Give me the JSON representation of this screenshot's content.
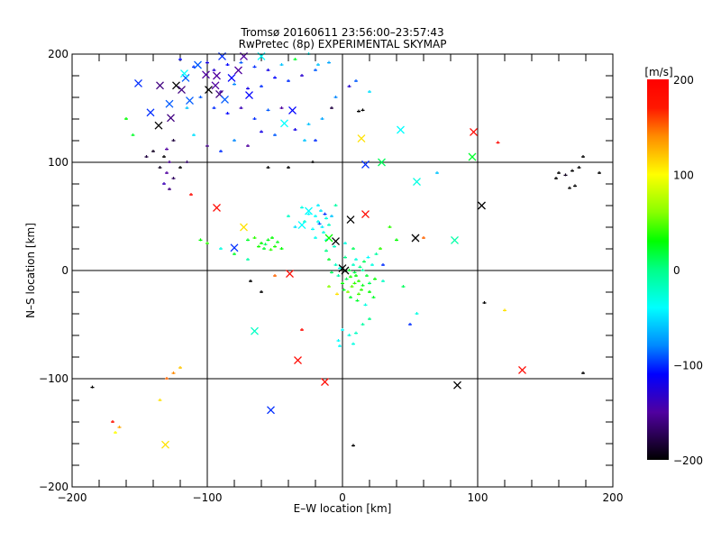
{
  "chart_data": {
    "type": "scatter",
    "title": "Tromsø 20160611 23:56:00–23:57:43",
    "subtitle": "RwPretec (8p) EXPERIMENTAL SKYMAP",
    "xlabel": "E–W location [km]",
    "ylabel": "N–S location [km]",
    "xlim": [
      -200,
      200
    ],
    "ylim": [
      -200,
      200
    ],
    "xticks": [
      "−200",
      "−100",
      "0",
      "100",
      "200"
    ],
    "yticks": [
      "−200",
      "−100",
      "0",
      "100",
      "200"
    ],
    "grid": true,
    "colorbar": {
      "label": "[m/s]",
      "range": [
        -200,
        200
      ],
      "ticks": [
        "200",
        "100",
        "0",
        "−100",
        "−200"
      ],
      "stops": [
        [
          200,
          "#ff0000"
        ],
        [
          170,
          "#ff1800"
        ],
        [
          140,
          "#ff8c00"
        ],
        [
          100,
          "#ffff00"
        ],
        [
          60,
          "#88ff00"
        ],
        [
          30,
          "#00ff00"
        ],
        [
          0,
          "#00ff88"
        ],
        [
          -40,
          "#00ffff"
        ],
        [
          -80,
          "#0088ff"
        ],
        [
          -110,
          "#0000ff"
        ],
        [
          -150,
          "#5000a0"
        ],
        [
          -200,
          "#000000"
        ]
      ]
    },
    "series_note": "points: [E-W km, N-S km, velocity m/s]",
    "crosses": [
      [
        97,
        128,
        190
      ],
      [
        43,
        130,
        -40
      ],
      [
        14,
        122,
        110
      ],
      [
        96,
        105,
        20
      ],
      [
        55,
        82,
        -30
      ],
      [
        17,
        98,
        -100
      ],
      [
        29,
        100,
        10
      ],
      [
        103,
        60,
        -200
      ],
      [
        -93,
        58,
        190
      ],
      [
        -73,
        40,
        110
      ],
      [
        6,
        47,
        -200
      ],
      [
        17,
        52,
        190
      ],
      [
        54,
        30,
        -200
      ],
      [
        83,
        28,
        -10
      ],
      [
        -80,
        21,
        -100
      ],
      [
        -5,
        27,
        -200
      ],
      [
        -39,
        -3,
        190
      ],
      [
        -33,
        -83,
        190
      ],
      [
        -13,
        -103,
        190
      ],
      [
        133,
        -92,
        190
      ],
      [
        85,
        -106,
        -200
      ],
      [
        -53,
        -129,
        -100
      ],
      [
        -131,
        -161,
        110
      ],
      [
        -65,
        -56,
        -20
      ],
      [
        0,
        2,
        -200
      ],
      [
        2,
        0,
        -200
      ],
      [
        -151,
        173,
        -100
      ],
      [
        -142,
        146,
        -100
      ],
      [
        -136,
        134,
        -200
      ],
      [
        -127,
        141,
        -160
      ],
      [
        -123,
        171,
        -200
      ],
      [
        -119,
        167,
        -160
      ],
      [
        -135,
        171,
        -160
      ],
      [
        -116,
        178,
        -90
      ],
      [
        -107,
        190,
        -90
      ],
      [
        -101,
        181,
        -150
      ],
      [
        -93,
        180,
        -150
      ],
      [
        -94,
        171,
        -150
      ],
      [
        -99,
        167,
        -200
      ],
      [
        -91,
        163,
        -160
      ],
      [
        -113,
        157,
        -90
      ],
      [
        -128,
        154,
        -90
      ],
      [
        -77,
        185,
        -150
      ],
      [
        -82,
        178,
        -110
      ],
      [
        -69,
        162,
        -110
      ],
      [
        -89,
        198,
        -100
      ],
      [
        -73,
        198,
        -150
      ],
      [
        -60,
        198,
        -40
      ],
      [
        -117,
        182,
        -40
      ],
      [
        -87,
        158,
        -90
      ],
      [
        -37,
        148,
        -110
      ],
      [
        -43,
        136,
        -40
      ],
      [
        -30,
        42,
        -40
      ],
      [
        -25,
        55,
        -40
      ],
      [
        -10,
        30,
        30
      ]
    ],
    "dots": [
      [
        -120,
        195,
        -110
      ],
      [
        -110,
        188,
        -100
      ],
      [
        -100,
        192,
        -120
      ],
      [
        -95,
        185,
        -130
      ],
      [
        -85,
        190,
        -110
      ],
      [
        -75,
        192,
        -90
      ],
      [
        -65,
        188,
        -100
      ],
      [
        -55,
        185,
        -120
      ],
      [
        -50,
        178,
        -110
      ],
      [
        -45,
        190,
        -60
      ],
      [
        -40,
        175,
        -100
      ],
      [
        -30,
        180,
        -130
      ],
      [
        -20,
        185,
        -90
      ],
      [
        -18,
        190,
        -60
      ],
      [
        -10,
        192,
        -70
      ],
      [
        -35,
        195,
        20
      ],
      [
        -25,
        200,
        -40
      ],
      [
        -60,
        170,
        -100
      ],
      [
        -70,
        168,
        -120
      ],
      [
        -80,
        172,
        -80
      ],
      [
        -90,
        165,
        -140
      ],
      [
        -105,
        160,
        -90
      ],
      [
        -115,
        150,
        -60
      ],
      [
        -95,
        150,
        -100
      ],
      [
        -85,
        145,
        -110
      ],
      [
        -75,
        150,
        -140
      ],
      [
        -65,
        140,
        -100
      ],
      [
        -55,
        148,
        -90
      ],
      [
        -45,
        150,
        -150
      ],
      [
        -35,
        130,
        -120
      ],
      [
        -25,
        135,
        -60
      ],
      [
        -15,
        140,
        -70
      ],
      [
        -20,
        120,
        -100
      ],
      [
        -50,
        125,
        -90
      ],
      [
        -60,
        128,
        -120
      ],
      [
        -70,
        115,
        -150
      ],
      [
        -80,
        120,
        -80
      ],
      [
        -90,
        110,
        -100
      ],
      [
        -100,
        115,
        -160
      ],
      [
        -110,
        125,
        -50
      ],
      [
        -125,
        120,
        -180
      ],
      [
        -130,
        112,
        -150
      ],
      [
        -132,
        105,
        -200
      ],
      [
        -128,
        100,
        -160
      ],
      [
        -135,
        95,
        -190
      ],
      [
        -130,
        90,
        -150
      ],
      [
        -125,
        85,
        -170
      ],
      [
        -132,
        80,
        -140
      ],
      [
        -128,
        75,
        -160
      ],
      [
        -120,
        95,
        -200
      ],
      [
        -115,
        100,
        -170
      ],
      [
        -140,
        110,
        -190
      ],
      [
        -145,
        105,
        -180
      ],
      [
        -155,
        125,
        20
      ],
      [
        -5,
        160,
        -80
      ],
      [
        5,
        170,
        -130
      ],
      [
        10,
        175,
        -90
      ],
      [
        -8,
        150,
        -180
      ],
      [
        15,
        148,
        -200
      ],
      [
        20,
        165,
        -50
      ],
      [
        160,
        90,
        -200
      ],
      [
        165,
        88,
        -190
      ],
      [
        170,
        92,
        -200
      ],
      [
        158,
        85,
        -200
      ],
      [
        175,
        95,
        -200
      ],
      [
        178,
        105,
        -200
      ],
      [
        190,
        90,
        -200
      ],
      [
        172,
        78,
        -200
      ],
      [
        168,
        76,
        -200
      ],
      [
        -20,
        50,
        -40
      ],
      [
        -18,
        45,
        -35
      ],
      [
        -15,
        40,
        -45
      ],
      [
        -12,
        48,
        -30
      ],
      [
        -22,
        38,
        -40
      ],
      [
        -16,
        55,
        -50
      ],
      [
        -10,
        42,
        -20
      ],
      [
        -25,
        52,
        -40
      ],
      [
        -14,
        35,
        -30
      ],
      [
        -18,
        60,
        -45
      ],
      [
        -8,
        50,
        -60
      ],
      [
        -20,
        30,
        -35
      ],
      [
        -28,
        45,
        -20
      ],
      [
        -12,
        28,
        -40
      ],
      [
        -5,
        60,
        -10
      ],
      [
        -30,
        58,
        -30
      ],
      [
        -35,
        40,
        -50
      ],
      [
        -40,
        50,
        -20
      ],
      [
        -17,
        43,
        -90
      ],
      [
        -13,
        52,
        -100
      ],
      [
        -60,
        25,
        30
      ],
      [
        -55,
        28,
        25
      ],
      [
        -50,
        22,
        35
      ],
      [
        -58,
        20,
        20
      ],
      [
        -65,
        30,
        40
      ],
      [
        -52,
        30,
        30
      ],
      [
        -48,
        26,
        25
      ],
      [
        -62,
        22,
        35
      ],
      [
        -70,
        28,
        20
      ],
      [
        -45,
        20,
        30
      ],
      [
        -57,
        24,
        10
      ],
      [
        -53,
        19,
        40
      ],
      [
        5,
        0,
        20
      ],
      [
        10,
        -5,
        30
      ],
      [
        8,
        5,
        -20
      ],
      [
        12,
        -10,
        40
      ],
      [
        3,
        -8,
        10
      ],
      [
        15,
        0,
        -10
      ],
      [
        7,
        -15,
        50
      ],
      [
        18,
        -5,
        20
      ],
      [
        10,
        10,
        -30
      ],
      [
        2,
        12,
        0
      ],
      [
        20,
        -20,
        30
      ],
      [
        6,
        -25,
        20
      ],
      [
        14,
        -18,
        40
      ],
      [
        -5,
        5,
        -20
      ],
      [
        -8,
        -2,
        10
      ],
      [
        0,
        -12,
        30
      ],
      [
        22,
        5,
        -30
      ],
      [
        16,
        8,
        10
      ],
      [
        11,
        -28,
        20
      ],
      [
        4,
        -20,
        60
      ],
      [
        9,
        -12,
        40
      ],
      [
        13,
        3,
        0
      ],
      [
        -3,
        -5,
        -10
      ],
      [
        19,
        12,
        -40
      ],
      [
        24,
        -8,
        30
      ],
      [
        -10,
        10,
        20
      ],
      [
        -12,
        18,
        0
      ],
      [
        -6,
        22,
        -20
      ],
      [
        2,
        25,
        -30
      ],
      [
        8,
        20,
        10
      ],
      [
        25,
        15,
        -10
      ],
      [
        28,
        20,
        40
      ],
      [
        17,
        -32,
        -30
      ],
      [
        6,
        -6,
        35
      ],
      [
        12,
        -22,
        45
      ],
      [
        9,
        -2,
        15
      ],
      [
        15,
        -14,
        25
      ],
      [
        1,
        -18,
        20
      ],
      [
        -2,
        2,
        -30
      ],
      [
        20,
        -12,
        10
      ],
      [
        -4,
        -22,
        110
      ],
      [
        30,
        5,
        -100
      ],
      [
        -10,
        -15,
        60
      ],
      [
        23,
        -25,
        20
      ],
      [
        0,
        -55,
        -40
      ],
      [
        5,
        -60,
        -30
      ],
      [
        -3,
        -65,
        -40
      ],
      [
        10,
        -58,
        -20
      ],
      [
        15,
        -50,
        -10
      ],
      [
        20,
        -45,
        0
      ],
      [
        -2,
        -70,
        -40
      ],
      [
        8,
        -68,
        -30
      ],
      [
        -70,
        10,
        -10
      ],
      [
        -80,
        15,
        20
      ],
      [
        -90,
        20,
        -30
      ],
      [
        -100,
        25,
        40
      ],
      [
        -105,
        28,
        30
      ],
      [
        -60,
        -20,
        -200
      ],
      [
        -30,
        -55,
        190
      ],
      [
        -120,
        -90,
        120
      ],
      [
        -125,
        -95,
        140
      ],
      [
        -135,
        -120,
        110
      ],
      [
        -165,
        -145,
        130
      ],
      [
        -168,
        -150,
        100
      ],
      [
        -170,
        -140,
        180
      ],
      [
        -185,
        -108,
        -200
      ],
      [
        -50,
        -5,
        150
      ],
      [
        50,
        -50,
        -100
      ],
      [
        55,
        -40,
        -30
      ],
      [
        60,
        30,
        150
      ],
      [
        70,
        90,
        -60
      ],
      [
        -68,
        -10,
        -200
      ],
      [
        120,
        -37,
        110
      ],
      [
        105,
        -30,
        -200
      ],
      [
        178,
        -95,
        -200
      ],
      [
        8,
        -162,
        -200
      ],
      [
        -112,
        70,
        190
      ],
      [
        115,
        118,
        190
      ],
      [
        -55,
        95,
        -200
      ],
      [
        -40,
        95,
        -200
      ],
      [
        -28,
        120,
        -60
      ],
      [
        12,
        147,
        -200
      ],
      [
        -22,
        100,
        -200
      ],
      [
        35,
        40,
        40
      ],
      [
        40,
        28,
        30
      ],
      [
        30,
        -10,
        -20
      ],
      [
        45,
        -15,
        10
      ],
      [
        -160,
        140,
        30
      ],
      [
        -130,
        -100,
        150
      ]
    ]
  }
}
